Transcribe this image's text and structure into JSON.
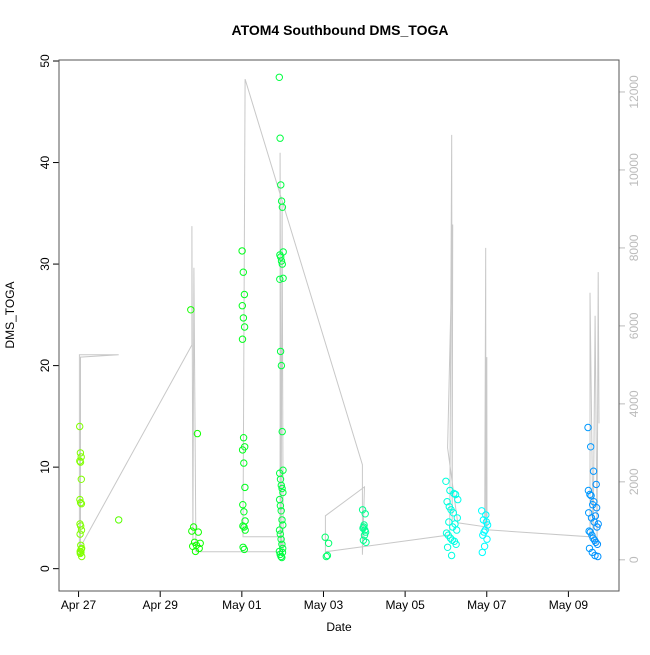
{
  "chart_data": {
    "type": "scatter",
    "title": "ATOM4 Southbound DMS_TOGA",
    "xlabel": "Date",
    "ylabel": "DMS_TOGA",
    "x_ticks": [
      {
        "time": "04-27 00:00",
        "label": "Apr 27"
      },
      {
        "time": "04-29 00:00",
        "label": "Apr 29"
      },
      {
        "time": "05-01 00:00",
        "label": "May 01"
      },
      {
        "time": "05-03 00:00",
        "label": "May 03"
      },
      {
        "time": "05-05 00:00",
        "label": "May 05"
      },
      {
        "time": "05-07 00:00",
        "label": "May 07"
      },
      {
        "time": "05-09 00:00",
        "label": "May 09"
      }
    ],
    "xlim": [
      "04-26 12:30",
      "05-10 05:45"
    ],
    "ylim": [
      -2.2,
      50.1
    ],
    "y_ticks": [
      "0",
      "10",
      "20",
      "30",
      "40",
      "50"
    ],
    "y2lim": [
      -800,
      12820
    ],
    "y2_ticks": [
      "0",
      "2000",
      "4000",
      "6000",
      "8000",
      "10000",
      "12000"
    ],
    "grid": false,
    "point_colors": {
      "start": "#80ff00",
      "end": "#0090ff"
    },
    "secondary_line_color": "#c8c8c8",
    "scatter_clusters": [
      {
        "time_range": [
          "04-27 00:40",
          "04-27 01:50"
        ],
        "values": [
          14.0,
          11.4,
          11.0,
          10.6,
          10.5,
          8.8,
          6.8,
          6.5,
          6.4,
          4.4,
          4.2,
          3.8,
          3.4,
          2.3,
          2.0,
          1.7,
          1.6,
          1.2,
          1.5,
          1.9
        ]
      },
      {
        "time_range": [
          "04-27 23:35",
          "04-27 23:35"
        ],
        "values": [
          4.8
        ]
      },
      {
        "time_range": [
          "04-29 18:00",
          "04-29 23:30"
        ],
        "values": [
          25.5,
          13.3,
          4.1,
          2.5,
          2.3,
          2.2,
          2.0,
          1.7,
          3.7,
          3.6,
          2.6
        ]
      },
      {
        "time_range": [
          "05-01 00:10",
          "05-01 02:00"
        ],
        "values": [
          31.3,
          29.2,
          27.0,
          25.9,
          24.7,
          23.8,
          22.6,
          12.9,
          12.0,
          11.7,
          10.4,
          8.0,
          6.3,
          5.6,
          4.7,
          4.2,
          4.1,
          3.8,
          2.1,
          1.9
        ]
      },
      {
        "time_range": [
          "05-01 22:00",
          "05-02 00:20"
        ],
        "values": [
          48.4,
          42.4,
          37.8,
          36.2,
          35.6,
          31.2,
          30.9,
          30.7,
          30.3,
          30.0,
          28.6,
          28.5,
          21.4,
          20.0,
          13.5,
          9.7,
          9.4,
          8.8,
          8.2,
          7.9,
          7.5,
          6.8,
          6.2,
          5.7,
          4.8,
          4.3,
          3.8,
          3.4,
          2.9,
          2.4,
          2.0,
          1.7,
          1.4,
          1.2,
          1.1,
          1.6
        ]
      },
      {
        "time_range": [
          "05-03 01:00",
          "05-03 03:00"
        ],
        "values": [
          3.1,
          2.5,
          1.3,
          1.2
        ]
      },
      {
        "time_range": [
          "05-03 23:00",
          "05-04 01:00"
        ],
        "values": [
          5.8,
          5.4,
          4.3,
          4.0,
          3.6,
          3.3,
          2.8,
          2.6,
          3.8,
          4.1
        ]
      },
      {
        "time_range": [
          "05-06 00:00",
          "05-06 07:00"
        ],
        "values": [
          8.6,
          7.7,
          7.4,
          6.8,
          6.1,
          5.5,
          5.0,
          4.6,
          4.1,
          3.8,
          3.3,
          2.8,
          2.4,
          2.1,
          1.3,
          7.3,
          6.6,
          5.8,
          4.4,
          3.5,
          3.0,
          2.7
        ]
      },
      {
        "time_range": [
          "05-06 21:00",
          "05-07 00:30"
        ],
        "values": [
          5.7,
          5.3,
          4.8,
          4.3,
          3.8,
          3.3,
          2.9,
          2.2,
          1.6,
          4.6,
          3.6
        ]
      },
      {
        "time_range": [
          "05-09 11:30",
          "05-09 17:30"
        ],
        "values": [
          13.9,
          12.0,
          9.6,
          8.3,
          7.7,
          7.2,
          6.6,
          6.0,
          5.5,
          5.0,
          4.6,
          4.1,
          3.7,
          3.3,
          2.8,
          2.4,
          2.0,
          1.6,
          1.3,
          1.2,
          7.3,
          6.3,
          5.2,
          4.4,
          3.6,
          3.0,
          2.6
        ]
      }
    ],
    "secondary_line": [
      [
        "04-27 00:30",
        130
      ],
      [
        "04-27 00:30",
        5260
      ],
      [
        "04-27 23:35",
        5260
      ],
      [
        "04-27 01:10",
        5200
      ],
      [
        "04-27 01:10",
        330
      ],
      [
        "04-29 18:40",
        5510
      ],
      [
        "04-29 18:40",
        8560
      ],
      [
        "04-29 19:15",
        510
      ],
      [
        "04-29 19:50",
        7490
      ],
      [
        "04-29 21:00",
        310
      ],
      [
        "04-29 21:00",
        205
      ],
      [
        "05-01 22:30",
        205
      ],
      [
        "05-01 22:30",
        10440
      ],
      [
        "05-01 23:06",
        260
      ],
      [
        "05-01 23:42",
        9230
      ],
      [
        "05-02 00:18",
        205
      ],
      [
        "05-01 23:06",
        590
      ],
      [
        "05-01 00:42",
        590
      ],
      [
        "05-01 01:54",
        12330
      ],
      [
        "05-03 22:54",
        2440
      ],
      [
        "05-03 22:54",
        130
      ],
      [
        "05-04 00:06",
        1870
      ],
      [
        "05-03 01:06",
        1130
      ],
      [
        "05-03 01:06",
        205
      ],
      [
        "05-06 02:12",
        640
      ],
      [
        "05-06 03:24",
        10900
      ],
      [
        "05-06 03:40",
        900
      ],
      [
        "05-06 04:00",
        8600
      ],
      [
        "05-06 01:00",
        2870
      ],
      [
        "05-06 06:54",
        950
      ],
      [
        "05-06 22:48",
        850
      ],
      [
        "05-06 23:24",
        8000
      ],
      [
        "05-06 23:30",
        770
      ],
      [
        "05-07 00:00",
        5200
      ],
      [
        "05-07 00:10",
        770
      ],
      [
        "05-09 12:42",
        590
      ],
      [
        "05-09 12:42",
        6850
      ],
      [
        "05-09 14:30",
        380
      ],
      [
        "05-09 15:42",
        6260
      ],
      [
        "05-09 16:54",
        380
      ],
      [
        "05-09 17:30",
        7380
      ],
      [
        "05-09 18:00",
        3500
      ]
    ]
  }
}
